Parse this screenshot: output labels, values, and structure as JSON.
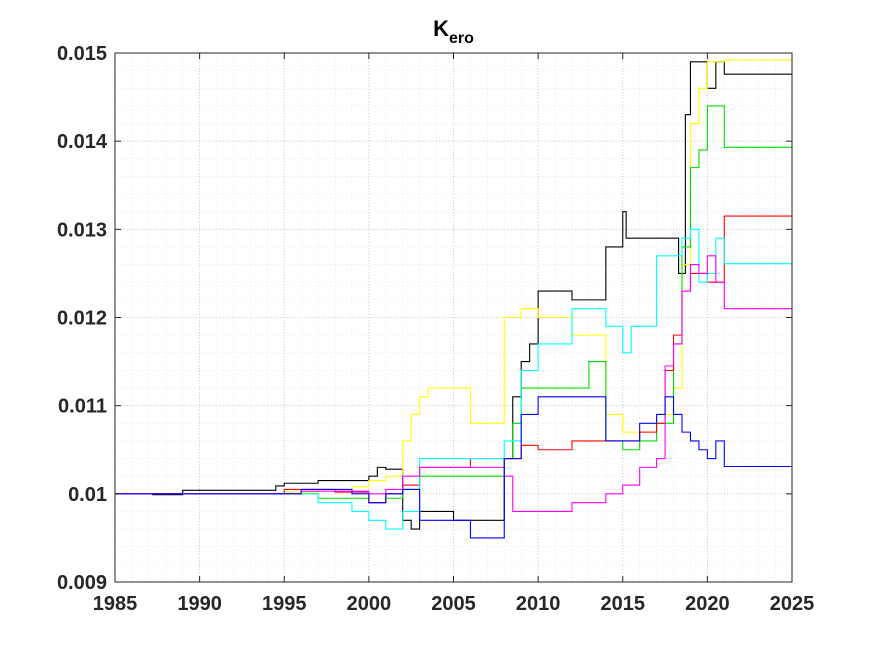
{
  "chart_data": {
    "type": "line",
    "title": "K",
    "title_subscript": "ero",
    "xlabel": "",
    "ylabel": "",
    "xlim": [
      1985,
      2025
    ],
    "ylim": [
      0.009,
      0.015
    ],
    "xticks": [
      1985,
      1990,
      1995,
      2000,
      2005,
      2010,
      2015,
      2020,
      2025
    ],
    "yticks": [
      0.009,
      0.01,
      0.011,
      0.012,
      0.013,
      0.014,
      0.015
    ],
    "xtick_labels": [
      "1985",
      "1990",
      "1995",
      "2000",
      "2005",
      "2010",
      "2015",
      "2020",
      "2025"
    ],
    "ytick_labels": [
      "0.009",
      "0.01",
      "0.011",
      "0.012",
      "0.013",
      "0.014",
      "0.015"
    ],
    "grid": true,
    "minor_grid": true,
    "step": true,
    "series": [
      {
        "color": "#000000",
        "x": [
          1987.2,
          1989,
          1994.5,
          1995,
          1997,
          1999.5,
          2000,
          2000.5,
          2001,
          2002,
          2002.5,
          2003,
          2005,
          2006,
          2008,
          2008.5,
          2009,
          2009.5,
          2010,
          2012,
          2014,
          2015,
          2015.2,
          2015.5,
          2016,
          2018.3,
          2018.7,
          2019,
          2019.5,
          2020,
          2020.5,
          2021,
          2025
        ],
        "y": [
          0.00999,
          0.01004,
          0.01009,
          0.01012,
          0.01015,
          0.01015,
          0.0102,
          0.0103,
          0.01028,
          0.0097,
          0.0096,
          0.0098,
          0.0097,
          0.0097,
          0.0104,
          0.0111,
          0.0115,
          0.0117,
          0.0123,
          0.0122,
          0.0128,
          0.0132,
          0.0129,
          0.0129,
          0.0129,
          0.0125,
          0.0143,
          0.0149,
          0.0149,
          0.0146,
          0.0149,
          0.01476,
          0.01476
        ]
      },
      {
        "color": "#ffff00",
        "x": [
          1985,
          1995,
          1997,
          1999,
          2000,
          2001,
          2002,
          2002.5,
          2003,
          2003.5,
          2005,
          2006,
          2007,
          2008,
          2009,
          2010,
          2012,
          2014,
          2015,
          2017,
          2018,
          2018.5,
          2019,
          2019.5,
          2020,
          2020.5,
          2021,
          2025
        ],
        "y": [
          0.01,
          0.01002,
          0.01005,
          0.01008,
          0.01015,
          0.0102,
          0.0106,
          0.0109,
          0.0111,
          0.0112,
          0.0112,
          0.0108,
          0.0108,
          0.012,
          0.0121,
          0.012,
          0.0118,
          0.0109,
          0.0107,
          0.0109,
          0.0112,
          0.0126,
          0.0142,
          0.0146,
          0.0149,
          0.0149,
          0.01492,
          0.01492
        ]
      },
      {
        "color": "#00dd00",
        "x": [
          1985,
          1997,
          2000,
          2001,
          2002,
          2003,
          2006,
          2008,
          2008.5,
          2009,
          2010,
          2012,
          2013,
          2014,
          2015,
          2016,
          2017,
          2018,
          2018.5,
          2019,
          2019.5,
          2020,
          2020.5,
          2021,
          2025
        ],
        "y": [
          0.01,
          0.00995,
          0.0099,
          0.00995,
          0.01005,
          0.0102,
          0.0102,
          0.0104,
          0.0108,
          0.0112,
          0.0112,
          0.0112,
          0.0115,
          0.0106,
          0.0105,
          0.0106,
          0.0108,
          0.0117,
          0.0128,
          0.0137,
          0.0139,
          0.0144,
          0.0144,
          0.01393,
          0.01393
        ]
      },
      {
        "color": "#ff0000",
        "x": [
          1985,
          1995,
          1998,
          2000,
          2001,
          2002,
          2003,
          2006,
          2008,
          2009,
          2010,
          2011,
          2012,
          2014,
          2015,
          2016,
          2017,
          2017.5,
          2018,
          2018.5,
          2019,
          2020,
          2021,
          2025
        ],
        "y": [
          0.01,
          0.01005,
          0.01002,
          0.0099,
          0.01,
          0.0101,
          0.0103,
          0.0104,
          0.0104,
          0.01055,
          0.0105,
          0.0105,
          0.0106,
          0.0106,
          0.0106,
          0.0107,
          0.0108,
          0.0114,
          0.0118,
          0.0123,
          0.0125,
          0.0124,
          0.01315,
          0.01315
        ]
      },
      {
        "color": "#00ffff",
        "x": [
          1985,
          1997,
          1999,
          2000,
          2001,
          2002,
          2003,
          2006,
          2008,
          2009,
          2010,
          2012,
          2014,
          2015,
          2015.5,
          2016,
          2017,
          2018,
          2018.5,
          2019,
          2019.5,
          2020,
          2020.5,
          2021,
          2025
        ],
        "y": [
          0.01,
          0.0099,
          0.0098,
          0.0097,
          0.0096,
          0.0098,
          0.0104,
          0.0104,
          0.0106,
          0.0114,
          0.0117,
          0.0121,
          0.0119,
          0.0116,
          0.0119,
          0.0119,
          0.0127,
          0.0127,
          0.0129,
          0.013,
          0.0124,
          0.0125,
          0.0129,
          0.01261,
          0.01261
        ]
      },
      {
        "color": "#ff00ff",
        "x": [
          1985,
          1996,
          2000,
          2001,
          2002,
          2003,
          2006,
          2008,
          2008.5,
          2009,
          2010,
          2012,
          2014,
          2015,
          2016,
          2017,
          2017.5,
          2018,
          2018.5,
          2019,
          2019.5,
          2020,
          2020.5,
          2021,
          2025
        ],
        "y": [
          0.01,
          0.01003,
          0.01,
          0.01005,
          0.0102,
          0.0103,
          0.0103,
          0.0102,
          0.0098,
          0.0098,
          0.0098,
          0.0099,
          0.01,
          0.0101,
          0.0103,
          0.0104,
          0.01145,
          0.0117,
          0.0123,
          0.0126,
          0.0125,
          0.0127,
          0.0124,
          0.0121,
          0.0121
        ]
      },
      {
        "color": "#0000ff",
        "x": [
          1985,
          1996,
          1999,
          2000,
          2001,
          2002,
          2003,
          2006,
          2008,
          2009,
          2010,
          2012,
          2014,
          2015,
          2016,
          2017,
          2017.5,
          2018,
          2018.5,
          2019,
          2019.5,
          2020,
          2020.5,
          2021,
          2025
        ],
        "y": [
          0.01,
          0.01005,
          0.01,
          0.0099,
          0.01,
          0.01005,
          0.0097,
          0.0095,
          0.0104,
          0.0109,
          0.0111,
          0.0111,
          0.0106,
          0.0106,
          0.0108,
          0.0109,
          0.0111,
          0.0109,
          0.0107,
          0.0106,
          0.0105,
          0.0104,
          0.0106,
          0.01031,
          0.01031
        ]
      }
    ]
  }
}
